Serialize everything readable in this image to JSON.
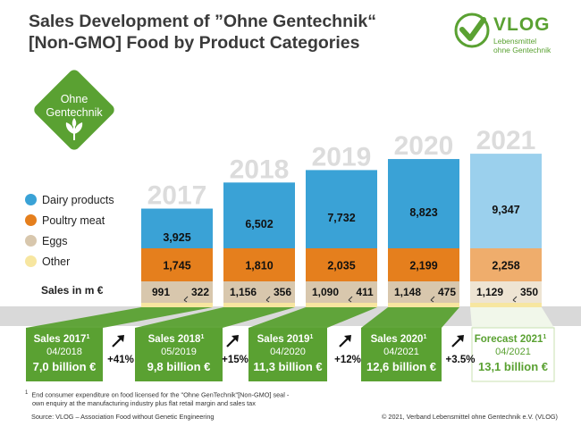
{
  "title": {
    "line1": "Sales Development of ”Ohne Gentechnik“",
    "line2": "[Non-GMO] Food by Product Categories"
  },
  "logo": {
    "brand": "VLOG",
    "tagline1": "Lebensmittel",
    "tagline2": "ohne Gentechnik"
  },
  "seal": {
    "line1": "Ohne",
    "line2": "Gentechnik"
  },
  "sales_row_label": "Sales in m €",
  "chart_data": {
    "type": "bar",
    "stacked": true,
    "categories": [
      "2017",
      "2018",
      "2019",
      "2020",
      "2021"
    ],
    "series": [
      {
        "name": "Other",
        "values": [
          null,
          null,
          null,
          null,
          null
        ]
      },
      {
        "name": "Eggs",
        "values": [
          991,
          1156,
          1090,
          1148,
          1129
        ]
      },
      {
        "name": "Poultry meat",
        "values": [
          1745,
          1810,
          2035,
          2199,
          2258
        ]
      },
      {
        "name": "Dairy products",
        "values": [
          3925,
          6502,
          7732,
          8823,
          9347
        ]
      }
    ],
    "other_labels": [
      "322",
      "356",
      "411",
      "475",
      "350"
    ],
    "egg_labels": [
      "991",
      "1,156",
      "1,090",
      "1,148",
      "1,129"
    ],
    "poultry_labels": [
      "1,745",
      "1,810",
      "2,035",
      "2,199",
      "2,258"
    ],
    "dairy_labels": [
      "3,925",
      "6,502",
      "7,732",
      "8,823",
      "9,347"
    ],
    "legend": [
      "Dairy products",
      "Poultry meat",
      "Eggs",
      "Other"
    ],
    "colors": {
      "dairy": "#3aa2d6",
      "dairy_forecast": "#9bd0ed",
      "poultry": "#e57f1d",
      "poultry_forecast": "#efad6c",
      "eggs": "#d8c7ad",
      "eggs_forecast": "#eee4d3",
      "other": "#f7e6a0",
      "year_label": "#dcdcdc",
      "green": "#5aa132"
    },
    "forecast_category": "2021"
  },
  "summary": [
    {
      "label": "Sales 2017",
      "sup": "1",
      "date": "04/2018",
      "value": "7,0 billion €",
      "forecast": false
    },
    {
      "label": "Sales 2018",
      "sup": "1",
      "date": "05/2019",
      "value": "9,8 billion €",
      "forecast": false
    },
    {
      "label": "Sales 2019",
      "sup": "1",
      "date": "04/2020",
      "value": "11,3 billion €",
      "forecast": false
    },
    {
      "label": "Sales 2020",
      "sup": "1",
      "date": "04/2021",
      "value": "12,6 billion €",
      "forecast": false
    },
    {
      "label": "Forecast 2021",
      "sup": "1",
      "date": "04/2021",
      "value": "13,1 billion €",
      "forecast": true
    }
  ],
  "growth": [
    "+41%",
    "+15%",
    "+12%",
    "+3.5%"
  ],
  "footnote": {
    "marker": "1",
    "line1": "End consumer expenditure on food licensed for the \"Ohne GenTechnik\"[Non-GMO] seal -",
    "line2": "own enquiry at the manufacturing industry plus flat retail margin and sales tax"
  },
  "source": "Source: VLOG – Association Food without Genetic Engineering",
  "copyright": "© 2021, Verband Lebensmittel ohne Gentechnik e.V. (VLOG)"
}
